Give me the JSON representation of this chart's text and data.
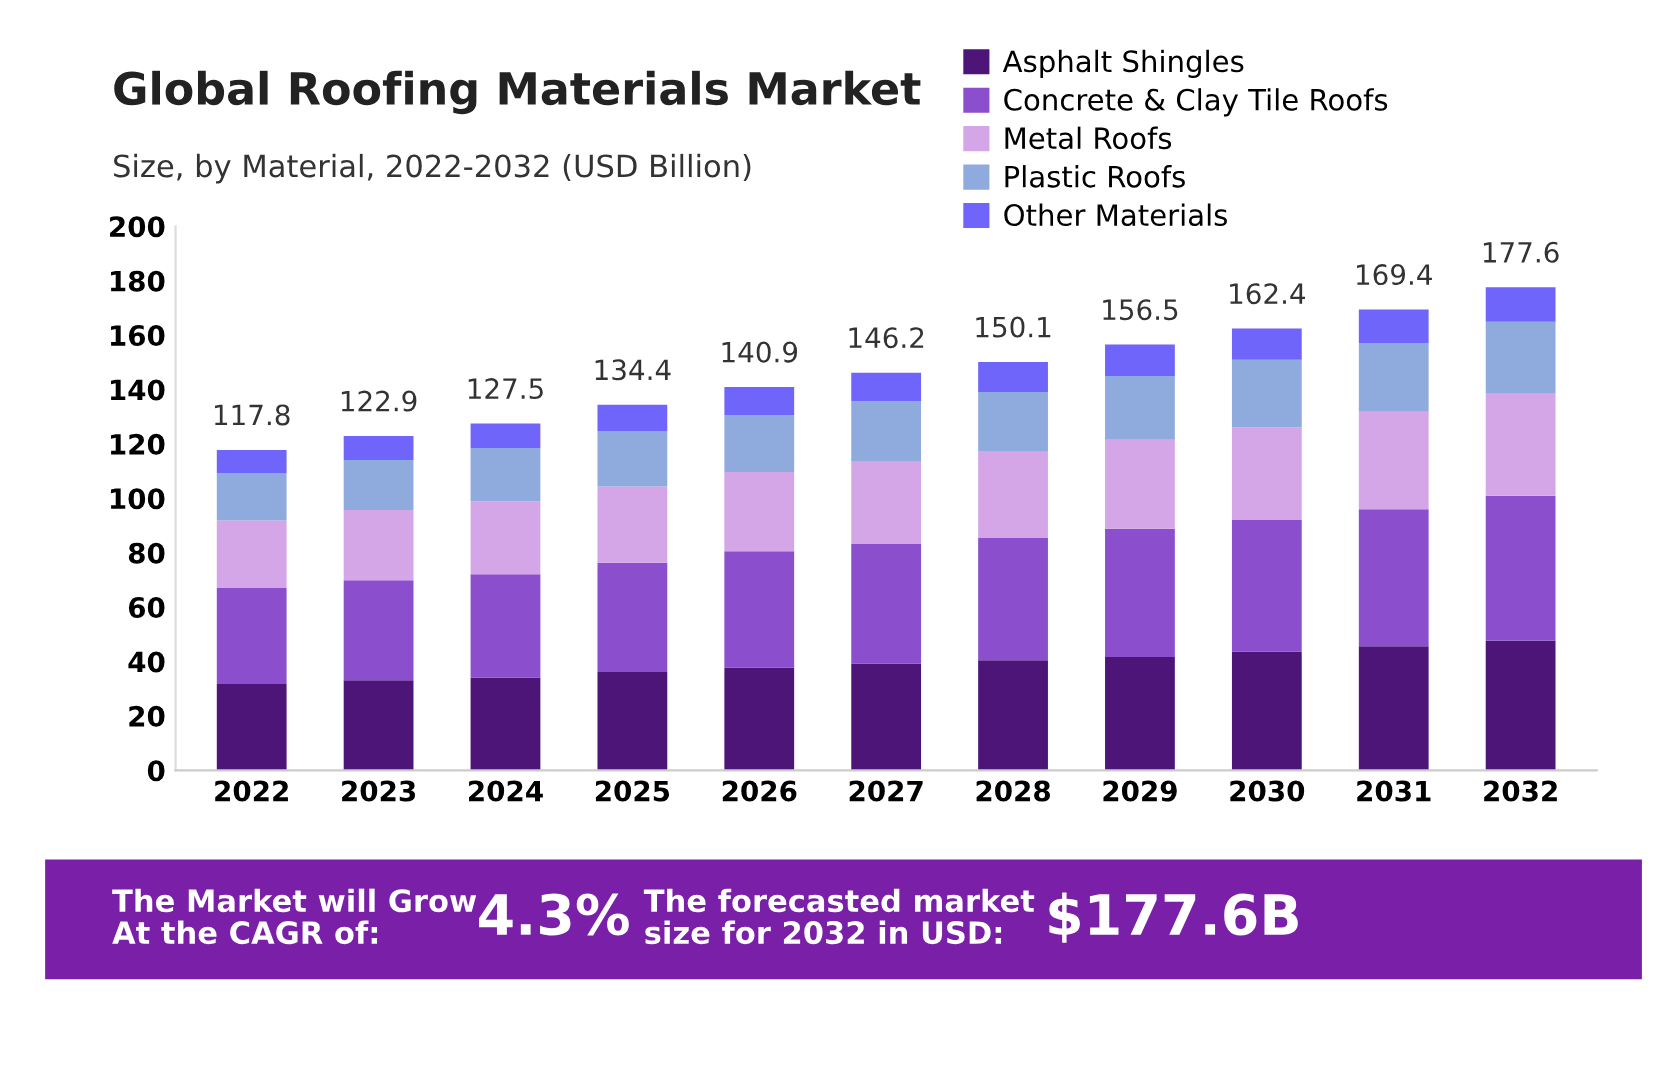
{
  "chart_data": {
    "type": "bar",
    "title": "Global Roofing Materials Market",
    "subtitle": "Size, by Material, 2022-2032 (USD Billion)",
    "categories": [
      "2022",
      "2023",
      "2024",
      "2025",
      "2026",
      "2027",
      "2028",
      "2029",
      "2030",
      "2031",
      "2032"
    ],
    "stacked": true,
    "legend": "top right",
    "grid": false,
    "series": [
      {
        "name": "Asphalt Shingles",
        "color": "#4e1578",
        "values": [
          31.7,
          33.1,
          34.1,
          36.1,
          37.8,
          39.3,
          40.5,
          41.7,
          43.7,
          45.6,
          47.6
        ]
      },
      {
        "name": "Concrete & Clay Tile Roofs",
        "color": "#8b4fcd",
        "values": [
          35.3,
          36.8,
          38.0,
          40.2,
          42.7,
          43.9,
          44.9,
          47.1,
          48.3,
          50.4,
          53.3
        ]
      },
      {
        "name": "Metal Roofs",
        "color": "#d4a6e8",
        "values": [
          24.8,
          25.8,
          26.8,
          28.0,
          29.2,
          30.2,
          31.7,
          32.7,
          34.1,
          35.8,
          37.5
        ]
      },
      {
        "name": "Plastic Roofs",
        "color": "#8faadc",
        "values": [
          17.5,
          18.4,
          19.6,
          20.4,
          20.9,
          22.3,
          22.0,
          23.5,
          24.8,
          25.3,
          26.5
        ]
      },
      {
        "name": "Other Materials",
        "color": "#7065fb",
        "values": [
          8.5,
          8.8,
          9.0,
          9.7,
          10.3,
          10.5,
          11.0,
          11.5,
          11.5,
          12.3,
          12.7
        ]
      }
    ],
    "totals": [
      "117.8",
      "122.9",
      "127.5",
      "134.4",
      "140.9",
      "146.2",
      "150.1",
      "156.5",
      "162.4",
      "169.4",
      "177.6"
    ],
    "ylim": [
      0,
      200
    ],
    "yticks": [
      0,
      20,
      40,
      60,
      80,
      100,
      120,
      140,
      160,
      180,
      200
    ],
    "annotations": [
      "The Market will Grow\nAt the CAGR of:",
      "4.3%",
      "The forecasted market\nsize for 2032 in USD:",
      "$177.6B"
    ]
  }
}
